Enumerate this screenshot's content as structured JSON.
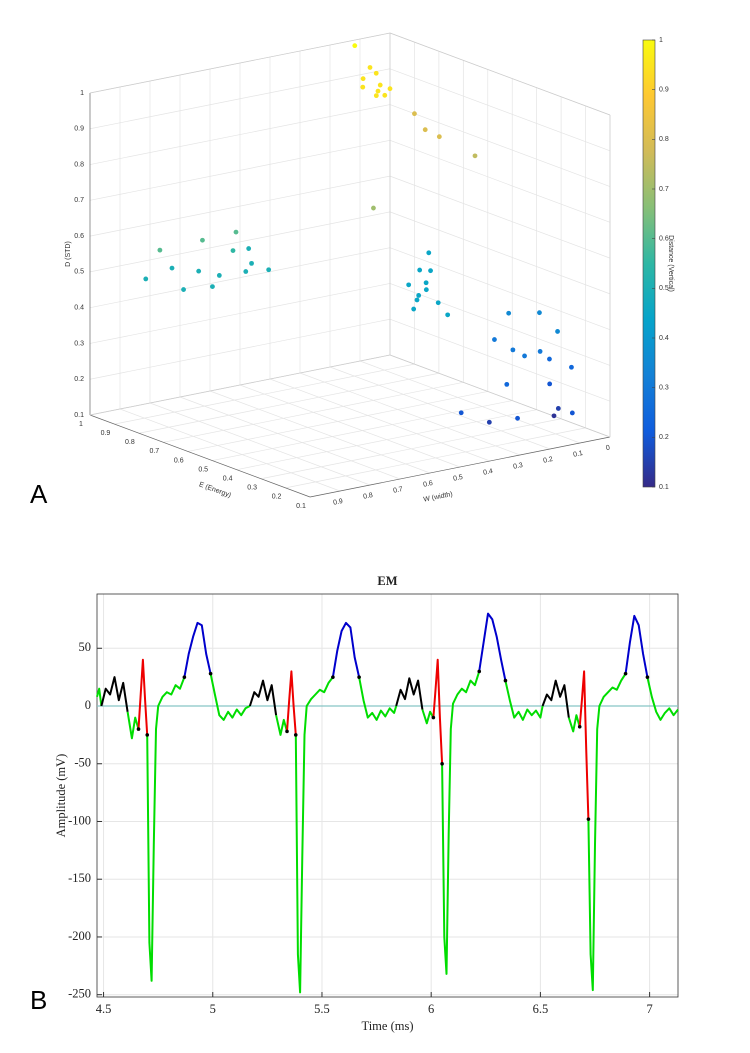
{
  "panel_labels": [
    "A",
    "B"
  ],
  "chart_data": [
    {
      "type": "scatter3d",
      "xlabel": "E (Energy)",
      "ylabel": "W (width)",
      "zlabel": "D (STD)",
      "colorbar_label": "Distance (Vertical)",
      "xlim": [
        0.1,
        1
      ],
      "ylim": [
        0,
        1
      ],
      "zlim": [
        0.1,
        1
      ],
      "xticks": [
        1,
        0.9,
        0.8,
        0.7,
        0.6,
        0.5,
        0.4,
        0.3,
        0.2,
        0.1
      ],
      "yticks": [
        0.9,
        0.8,
        0.7,
        0.6,
        0.5,
        0.4,
        0.3,
        0.2,
        0.1,
        0
      ],
      "zticks": [
        0.1,
        0.2,
        0.3,
        0.4,
        0.5,
        0.6,
        0.7,
        0.8,
        0.9,
        1
      ],
      "clim": [
        0.1,
        1
      ],
      "cticks": [
        0.1,
        0.2,
        0.3,
        0.4,
        0.5,
        0.6,
        0.7,
        0.8,
        0.9,
        1
      ],
      "colormap": [
        "#352a87",
        "#0f5cdd",
        "#1481d6",
        "#06a4ca",
        "#2eb7a4",
        "#87bf77",
        "#d1bb59",
        "#fec832",
        "#f9fb0e"
      ],
      "grid": true,
      "points": {
        "x": [
          0.96,
          0.78,
          0.91,
          0.86,
          0.84,
          0.77,
          0.73,
          0.69,
          0.73,
          0.7,
          0.9,
          0.77,
          0.7,
          0.64,
          0.54,
          0.78,
          0.67,
          0.65,
          0.58,
          0.57,
          0.52,
          0.49,
          0.41,
          0.46,
          0.4,
          0.31,
          0.49,
          0.45,
          0.45,
          0.35,
          0.29,
          0.3,
          0.29,
          0.36,
          0.27,
          0.24,
          0.31,
          0.23,
          0.25,
          0.11,
          0.25,
          0.07,
          0.28,
          0.8,
          0.81,
          0.82,
          0.87,
          0.91,
          0.85,
          0.74,
          0.72,
          0.79,
          0.82,
          0.94,
          0.83,
          0.78,
          0.76
        ],
        "y": [
          0.15,
          0.27,
          0.14,
          0.16,
          0.22,
          0.22,
          0.26,
          0.27,
          0.22,
          0.29,
          0,
          0.07,
          0.08,
          0.01,
          0.43,
          0.05,
          0.17,
          0.15,
          0.28,
          0.23,
          0.27,
          0.32,
          0.32,
          0.35,
          0.41,
          0.37,
          0.02,
          -0.05,
          0.1,
          0.12,
          0.13,
          0.07,
          0.02,
          -0.01,
          -0.01,
          0.23,
          0.03,
          0.39,
          0.28,
          0.3,
          0.05,
          0.15,
          0.04,
          0.93,
          0.78,
          0.66,
          0.92,
          0.8,
          0.76,
          0.9,
          0.82,
          0.74,
          0.67,
          0.52,
          0.6,
          0.66,
          0.6
        ],
        "z": [
          1,
          0.95,
          0.95,
          0.95,
          0.95,
          0.95,
          0.95,
          0.95,
          0.95,
          0.95,
          0.8,
          0.8,
          0.8,
          0.75,
          0.7,
          0.45,
          0.45,
          0.45,
          0.45,
          0.45,
          0.45,
          0.45,
          0.45,
          0.45,
          0.45,
          0.45,
          0.35,
          0.35,
          0.3,
          0.3,
          0.3,
          0.3,
          0.35,
          0.25,
          0.25,
          0.25,
          0.2,
          0.2,
          0.15,
          0.2,
          0.15,
          0.2,
          0.12,
          0.6,
          0.6,
          0.6,
          0.5,
          0.5,
          0.5,
          0.5,
          0.5,
          0.5,
          0.55,
          0.5,
          0.5,
          0.5,
          0.5
        ]
      }
    },
    {
      "type": "line",
      "title": "EM",
      "xlabel": "Time (ms)",
      "ylabel": "Amplitude (mV)",
      "xlim": [
        4.47,
        7.13
      ],
      "ylim": [
        -252,
        97
      ],
      "xticks": [
        4.5,
        5,
        5.5,
        6,
        6.5,
        7
      ],
      "yticks": [
        50,
        0,
        -50,
        -100,
        -150,
        -200,
        -250
      ],
      "grid": true,
      "hline": 0,
      "hline_color": "#86c5c5",
      "series": [
        {
          "color": "#00dd00",
          "x": [
            4.47,
            4.48,
            4.49,
            null,
            4.61,
            4.63,
            4.645,
            4.66,
            null,
            4.7,
            4.71,
            4.72,
            4.73,
            4.74,
            4.75,
            4.77,
            4.79,
            4.81,
            4.83,
            4.85,
            4.87,
            null,
            4.99,
            5.01,
            5.03,
            5.05,
            5.07,
            5.09,
            5.11,
            5.13,
            5.15,
            5.17,
            null,
            5.29,
            5.31,
            5.325,
            5.34,
            null,
            5.38,
            5.39,
            5.4,
            5.41,
            5.42,
            5.43,
            5.45,
            5.47,
            5.49,
            5.51,
            5.53,
            5.55,
            null,
            5.67,
            5.69,
            5.71,
            5.73,
            5.75,
            5.77,
            5.79,
            5.81,
            5.83,
            5.84,
            null,
            5.96,
            5.98,
            5.995,
            6.01,
            null,
            6.05,
            6.06,
            6.07,
            6.08,
            6.09,
            6.1,
            6.12,
            6.14,
            6.16,
            6.18,
            6.2,
            6.22,
            null,
            6.34,
            6.36,
            6.38,
            6.4,
            6.42,
            6.44,
            6.46,
            6.48,
            6.5,
            6.51,
            null,
            6.63,
            6.65,
            6.665,
            6.68,
            null,
            6.72,
            6.73,
            6.74,
            6.75,
            6.76,
            6.77,
            6.79,
            6.81,
            6.83,
            6.85,
            6.87,
            6.89,
            null,
            6.99,
            7.01,
            7.03,
            7.05,
            7.07,
            7.09,
            7.11,
            7.13
          ],
          "values": [
            8,
            15,
            0,
            null,
            -5,
            -28,
            -10,
            -20,
            null,
            -25,
            -205,
            -238,
            -120,
            -20,
            0,
            8,
            12,
            10,
            18,
            15,
            25,
            null,
            28,
            10,
            -8,
            -12,
            -5,
            -10,
            -3,
            -8,
            -2,
            0,
            null,
            -8,
            -25,
            -12,
            -22,
            null,
            -25,
            -215,
            -248,
            -130,
            -25,
            0,
            6,
            10,
            14,
            12,
            20,
            25,
            null,
            25,
            5,
            -10,
            -6,
            -12,
            -4,
            -9,
            -2,
            -6,
            0,
            null,
            -3,
            -15,
            -5,
            -10,
            null,
            -50,
            -200,
            -232,
            -110,
            -20,
            2,
            10,
            15,
            12,
            22,
            18,
            30,
            null,
            22,
            5,
            -10,
            -5,
            -12,
            -3,
            -8,
            -4,
            -10,
            0,
            null,
            -10,
            -22,
            -8,
            -18,
            null,
            -98,
            -215,
            -246,
            -120,
            -20,
            0,
            8,
            12,
            16,
            14,
            22,
            28,
            null,
            25,
            8,
            -5,
            -12,
            -6,
            -2,
            -8,
            -3
          ]
        },
        {
          "color": "#000000",
          "x": [
            4.49,
            4.51,
            4.53,
            4.55,
            4.57,
            4.59,
            4.61,
            null,
            5.17,
            5.19,
            5.21,
            5.23,
            5.25,
            5.27,
            5.29,
            null,
            5.84,
            5.86,
            5.88,
            5.9,
            5.92,
            5.94,
            5.96,
            null,
            6.51,
            6.53,
            6.55,
            6.57,
            6.59,
            6.61,
            6.63
          ],
          "values": [
            0,
            15,
            10,
            25,
            5,
            20,
            -5,
            null,
            0,
            12,
            8,
            22,
            5,
            18,
            -8,
            null,
            0,
            14,
            6,
            24,
            10,
            22,
            -3,
            null,
            0,
            10,
            5,
            22,
            8,
            18,
            -10
          ]
        },
        {
          "color": "#ee0000",
          "end_markers": true,
          "x": [
            4.66,
            4.67,
            4.68,
            4.69,
            4.7,
            null,
            5.34,
            5.35,
            5.36,
            5.37,
            5.38,
            null,
            6.01,
            6.02,
            6.03,
            6.04,
            6.05,
            null,
            6.68,
            6.69,
            6.7,
            6.71,
            6.72
          ],
          "values": [
            -20,
            10,
            40,
            5,
            -25,
            null,
            -22,
            5,
            30,
            0,
            -25,
            null,
            -10,
            15,
            40,
            -10,
            -50,
            null,
            -18,
            5,
            30,
            -40,
            -98
          ]
        },
        {
          "color": "#0000cc",
          "end_markers": true,
          "x": [
            4.87,
            4.89,
            4.91,
            4.93,
            4.95,
            4.97,
            4.99,
            null,
            5.55,
            5.57,
            5.59,
            5.61,
            5.63,
            5.65,
            5.67,
            null,
            6.22,
            6.24,
            6.26,
            6.28,
            6.3,
            6.32,
            6.34,
            null,
            6.89,
            6.91,
            6.93,
            6.95,
            6.97,
            6.99
          ],
          "values": [
            25,
            45,
            60,
            72,
            70,
            45,
            28,
            null,
            25,
            48,
            65,
            72,
            68,
            42,
            25,
            null,
            30,
            55,
            80,
            75,
            60,
            40,
            22,
            null,
            28,
            55,
            78,
            70,
            45,
            25
          ]
        }
      ]
    }
  ]
}
